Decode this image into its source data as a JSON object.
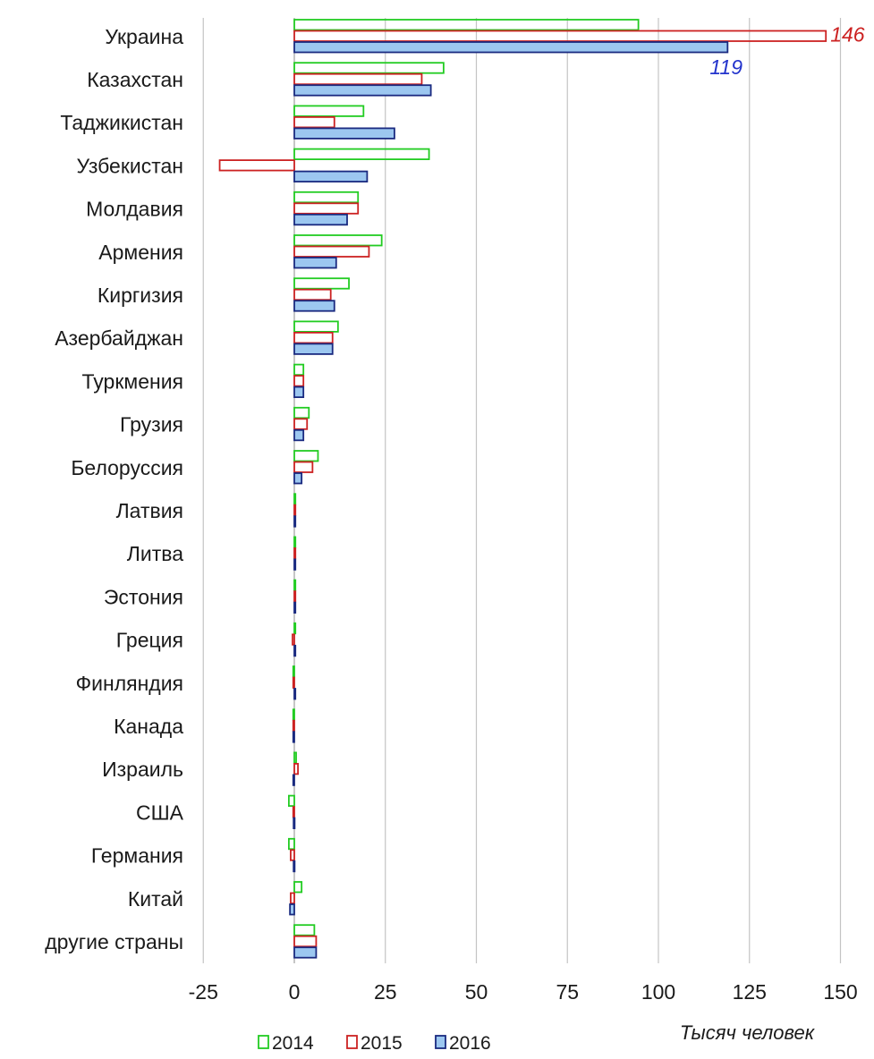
{
  "chart_data": {
    "type": "bar",
    "orientation": "horizontal",
    "categories": [
      "Украина",
      "Казахстан",
      "Таджикистан",
      "Узбекистан",
      "Молдавия",
      "Армения",
      "Киргизия",
      "Азербайджан",
      "Туркмения",
      "Грузия",
      "Белоруссия",
      "Латвия",
      "Литва",
      "Эстония",
      "Греция",
      "Финляндия",
      "Канада",
      "Израиль",
      "США",
      "Германия",
      "Китай",
      "другие страны"
    ],
    "series": [
      {
        "name": "2014",
        "color": "#22cc22",
        "fill": "none",
        "values": [
          94.5,
          41,
          19,
          37,
          17.5,
          24,
          15,
          12,
          2.5,
          4,
          6.5,
          0.3,
          0.3,
          0.3,
          0.2,
          -0.3,
          -0.3,
          0.5,
          -1.5,
          -1.5,
          2,
          5.5
        ]
      },
      {
        "name": "2015",
        "color": "#cc2222",
        "fill": "none",
        "values": [
          146,
          35,
          11,
          -20.5,
          17.5,
          20.5,
          10,
          10.5,
          2.5,
          3.5,
          5,
          0.3,
          0.3,
          0.3,
          -0.5,
          -0.3,
          -0.3,
          1,
          -0.3,
          -1,
          -1,
          6
        ]
      },
      {
        "name": "2016",
        "color": "#1a2a80",
        "fill": "#9cc7f0",
        "values": [
          119,
          37.5,
          27.5,
          20,
          14.5,
          11.5,
          11,
          10.5,
          2.5,
          2.5,
          2,
          0.3,
          0.3,
          0.3,
          0.3,
          0.2,
          -0.3,
          -0.3,
          -0.2,
          -0.2,
          -1.2,
          6
        ]
      }
    ],
    "xlim": [
      -25,
      150
    ],
    "x_ticks": [
      "-25",
      "0",
      "25",
      "50",
      "75",
      "100",
      "125",
      "150"
    ],
    "x_tick_values": [
      -25,
      0,
      25,
      50,
      75,
      100,
      125,
      150
    ],
    "xlabel": "Тысяч человек",
    "grid": "vertical",
    "legend": "bottom",
    "annotations": [
      {
        "text": "146",
        "series": "2015",
        "category": "Украина",
        "color": "#cc2222"
      },
      {
        "text": "119",
        "series": "2016",
        "category": "Украина",
        "color": "#2233cc"
      }
    ]
  }
}
